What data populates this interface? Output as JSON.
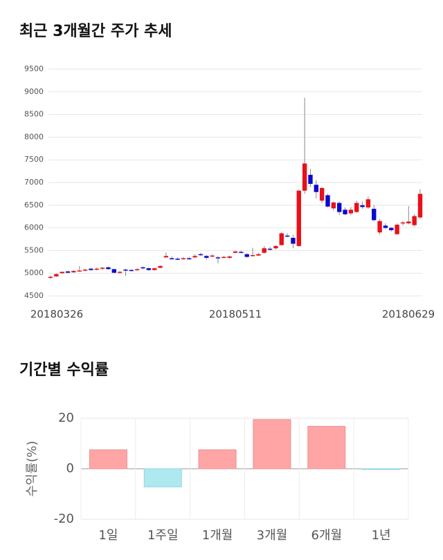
{
  "chart_data": [
    {
      "type": "candlestick",
      "title": "최근 3개월간 주가 추세",
      "categories": [
        "20180326",
        null,
        null,
        null,
        null,
        null,
        null,
        null,
        null,
        null,
        null,
        null,
        null,
        null,
        null,
        null,
        null,
        null,
        null,
        null,
        null,
        null,
        null,
        null,
        null,
        null,
        null,
        null,
        null,
        null,
        null,
        null,
        "20180511",
        null,
        null,
        null,
        null,
        null,
        null,
        null,
        null,
        null,
        null,
        null,
        null,
        null,
        null,
        null,
        null,
        null,
        null,
        null,
        null,
        null,
        null,
        null,
        null,
        null,
        null,
        null,
        null,
        null,
        null,
        null,
        "20180629"
      ],
      "open": [
        4900,
        4930,
        5000,
        5040,
        5020,
        5050,
        5060,
        5100,
        5080,
        5100,
        5130,
        5090,
        5010,
        5080,
        5070,
        5070,
        5130,
        5110,
        5070,
        5120,
        5350,
        5330,
        5320,
        5310,
        5330,
        5350,
        5420,
        5380,
        5380,
        5350,
        5350,
        5340,
        5450,
        5470,
        5420,
        5380,
        5390,
        5450,
        5540,
        5550,
        5620,
        5830,
        5780,
        5600,
        6820,
        7170,
        6950,
        6600,
        6720,
        6430,
        6550,
        6400,
        6320,
        6350,
        6500,
        6450,
        6420,
        5900,
        6050,
        6000,
        5860,
        6100,
        6100,
        6060,
        6230
      ],
      "high": [
        4950,
        5000,
        5040,
        5060,
        5070,
        5160,
        5100,
        5120,
        5130,
        5140,
        5150,
        5100,
        5050,
        5100,
        5090,
        5110,
        5150,
        5130,
        5120,
        5170,
        5460,
        5370,
        5350,
        5360,
        5360,
        5420,
        5450,
        5400,
        5420,
        5380,
        5380,
        5390,
        5500,
        5500,
        5440,
        5560,
        5450,
        5600,
        5580,
        5620,
        5900,
        5880,
        5850,
        6850,
        8870,
        7300,
        7050,
        6900,
        6750,
        6580,
        6580,
        6450,
        6460,
        6600,
        6580,
        6690,
        6500,
        6200,
        6100,
        6020,
        6100,
        6150,
        6480,
        6300,
        6850
      ],
      "low": [
        4870,
        4920,
        4990,
        5000,
        5010,
        5030,
        5040,
        5060,
        5060,
        5070,
        5080,
        5000,
        4990,
        4940,
        5040,
        5050,
        5090,
        5060,
        5060,
        5110,
        5330,
        5300,
        5290,
        5300,
        5290,
        5330,
        5380,
        5300,
        5350,
        5220,
        5330,
        5320,
        5440,
        5440,
        5340,
        5370,
        5380,
        5440,
        5500,
        5520,
        5610,
        5790,
        5550,
        5580,
        6750,
        6900,
        6650,
        6550,
        6450,
        6380,
        6280,
        6280,
        6280,
        6330,
        6420,
        6420,
        6150,
        5850,
        5970,
        5920,
        5850,
        6050,
        6080,
        6030,
        6200
      ],
      "close": [
        4920,
        4980,
        5030,
        5010,
        5050,
        5060,
        5080,
        5070,
        5100,
        5120,
        5090,
        5010,
        5030,
        5070,
        5060,
        5090,
        5110,
        5070,
        5110,
        5160,
        5380,
        5320,
        5310,
        5330,
        5320,
        5380,
        5400,
        5340,
        5390,
        5340,
        5360,
        5370,
        5480,
        5460,
        5360,
        5400,
        5420,
        5550,
        5530,
        5600,
        5880,
        5820,
        5650,
        6820,
        7420,
        6970,
        6790,
        6880,
        6470,
        6560,
        6350,
        6300,
        6400,
        6550,
        6460,
        6630,
        6170,
        6150,
        6000,
        5950,
        6070,
        6120,
        6140,
        6260,
        6750
      ],
      "up_color": "#e8111a",
      "down_color": "#0a0acd",
      "wick_color": "#888888",
      "ylim": [
        4500,
        9500
      ],
      "yticks": [
        4500,
        5000,
        5500,
        6000,
        6500,
        7000,
        7500,
        8000,
        8500,
        9000,
        9500
      ],
      "grid": true
    },
    {
      "type": "bar",
      "title": "기간별 수익률",
      "y_label": "수익률(%)",
      "categories": [
        "1일",
        "1주일",
        "1개월",
        "3개월",
        "6개월",
        "1년"
      ],
      "values": [
        7.5,
        -7.2,
        7.5,
        19.5,
        16.8,
        -0.3
      ],
      "positive_color": "#ffa5a5",
      "negative_color": "#aee9f0",
      "ylim": [
        -20,
        20
      ],
      "yticks": [
        -20,
        0,
        20
      ],
      "grid": true
    }
  ]
}
